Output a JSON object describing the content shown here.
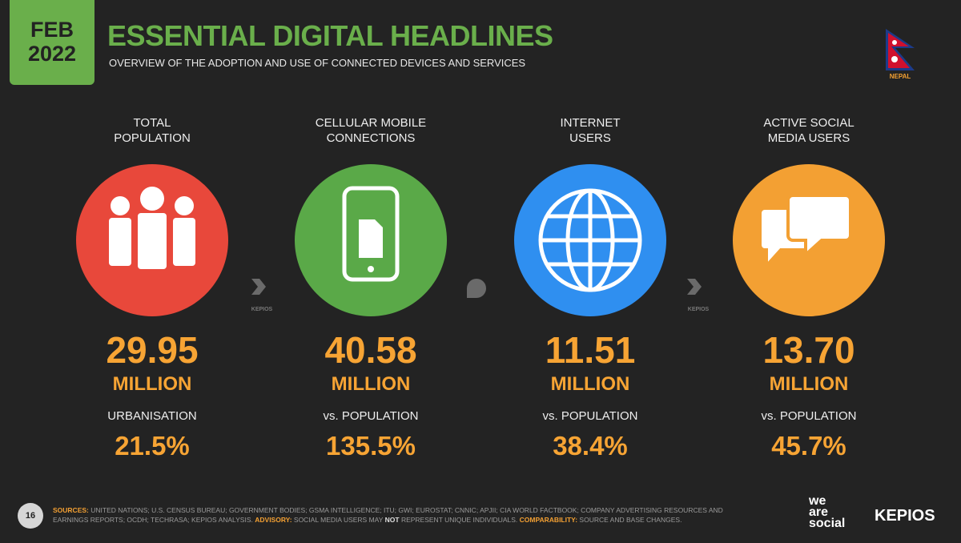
{
  "header": {
    "badge": [
      "FEB",
      "2022"
    ],
    "title": "ESSENTIAL DIGITAL HEADLINES",
    "subtitle": "OVERVIEW OF THE ADOPTION AND USE OF CONNECTED DEVICES AND SERVICES",
    "country": "NEPAL"
  },
  "cards": [
    {
      "label": [
        "TOTAL",
        "POPULATION"
      ],
      "value": "29.95",
      "unit": "MILLION",
      "sub_label": "URBANISATION",
      "sub_value": "21.5%"
    },
    {
      "label": [
        "CELLULAR MOBILE",
        "CONNECTIONS"
      ],
      "value": "40.58",
      "unit": "MILLION",
      "sub_label": "vs. POPULATION",
      "sub_value": "135.5%"
    },
    {
      "label": [
        "INTERNET",
        "USERS"
      ],
      "value": "11.51",
      "unit": "MILLION",
      "sub_label": "vs. POPULATION",
      "sub_value": "38.4%"
    },
    {
      "label": [
        "ACTIVE SOCIAL",
        "MEDIA USERS"
      ],
      "value": "13.70",
      "unit": "MILLION",
      "sub_label": "vs. POPULATION",
      "sub_value": "45.7%"
    }
  ],
  "watermark": "KEPIOS",
  "footer": {
    "page": "16",
    "sources_key": "SOURCES:",
    "sources": "UNITED NATIONS; U.S. CENSUS BUREAU; GOVERNMENT BODIES; GSMA INTELLIGENCE; ITU; GWI; EUROSTAT; CNNIC; APJII; CIA WORLD FACTBOOK; COMPANY ADVERTISING RESOURCES AND EARNINGS REPORTS; OCDH; TECHRASA; KEPIOS ANALYSIS.",
    "advisory_key": "ADVISORY:",
    "advisory_1": "SOCIAL MEDIA USERS MAY",
    "advisory_not": "NOT",
    "advisory_2": "REPRESENT UNIQUE INDIVIDUALS.",
    "comparability_key": "COMPARABILITY:",
    "comparability": "SOURCE AND BASE CHANGES.",
    "brand": [
      "we",
      "are",
      "social"
    ],
    "partner": "KEPIOS"
  }
}
